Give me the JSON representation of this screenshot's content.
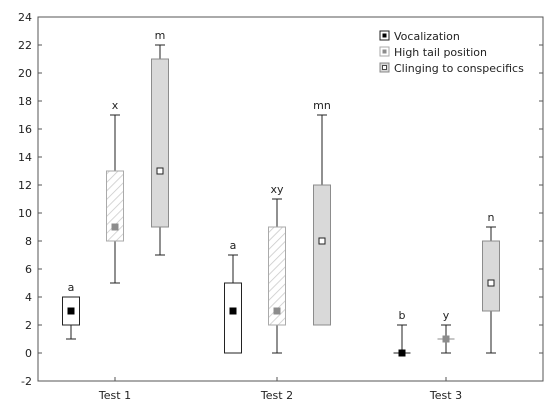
{
  "chart_data": {
    "type": "box",
    "title": "",
    "xlabel": "",
    "ylabel": "",
    "ylim": [
      -2,
      24
    ],
    "yticks": [
      -2,
      0,
      2,
      4,
      6,
      8,
      10,
      12,
      14,
      16,
      18,
      20,
      22,
      24
    ],
    "grid": false,
    "legend_position": "top-right",
    "categories": [
      "Test 1",
      "Test 2",
      "Test 3"
    ],
    "series": [
      {
        "name": "Vocalization",
        "fill": "#ffffff",
        "marker_color": "#000000",
        "hatched": false,
        "values": [
          {
            "median": 3,
            "q1": 2,
            "q3": 4,
            "min": 1,
            "max": 4,
            "letter": "a"
          },
          {
            "median": 3,
            "q1": 0,
            "q3": 5,
            "min": 0,
            "max": 7,
            "letter": "a"
          },
          {
            "median": 0,
            "q1": 0,
            "q3": 0,
            "min": 0,
            "max": 2,
            "letter": "b"
          }
        ]
      },
      {
        "name": "High tail position",
        "fill": "#ffffff",
        "marker_color": "#8c8c8c",
        "hatched": true,
        "values": [
          {
            "median": 9,
            "q1": 8,
            "q3": 13,
            "min": 5,
            "max": 17,
            "letter": "x"
          },
          {
            "median": 3,
            "q1": 2,
            "q3": 9,
            "min": 0,
            "max": 11,
            "letter": "xy"
          },
          {
            "median": 1,
            "q1": 1,
            "q3": 1,
            "min": 0,
            "max": 2,
            "letter": "y"
          }
        ]
      },
      {
        "name": "Clinging to conspecifics",
        "fill": "#d9d9d9",
        "marker_color": "#ffffff",
        "hatched": false,
        "values": [
          {
            "median": 13,
            "q1": 9,
            "q3": 21,
            "min": 7,
            "max": 22,
            "letter": "m"
          },
          {
            "median": 8,
            "q1": 2,
            "q3": 12,
            "min": 2,
            "max": 17,
            "letter": "mn"
          },
          {
            "median": 5,
            "q1": 3,
            "q3": 8,
            "min": 0,
            "max": 9,
            "letter": "n"
          }
        ]
      }
    ]
  }
}
